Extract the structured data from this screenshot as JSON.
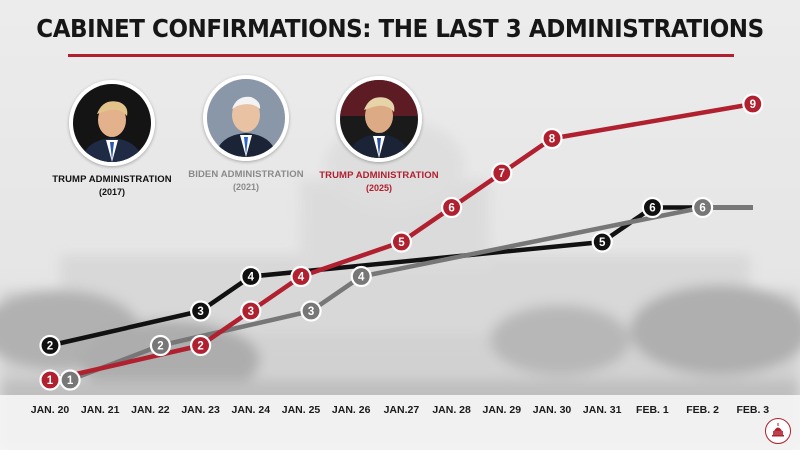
{
  "header": {
    "title": "CABINET CONFIRMATIONS: THE LAST 3 ADMINISTRATIONS"
  },
  "colors": {
    "trump2017": "#111111",
    "biden2021": "#7a7a7a",
    "trump2025": "#b0202f",
    "accent": "#b0202f"
  },
  "administrations": [
    {
      "name": "TRUMP ADMINISTRATION",
      "year": "(2017)",
      "color": "#111111"
    },
    {
      "name": "BIDEN ADMINISTRATION",
      "year": "(2021)",
      "color": "#8a8a8a"
    },
    {
      "name": "TRUMP ADMINISTRATION",
      "year": "(2025)",
      "color": "#b0202f"
    }
  ],
  "chart_data": {
    "type": "line",
    "title": "CABINET CONFIRMATIONS: THE LAST 3 ADMINISTRATIONS",
    "categories": [
      "JAN. 20",
      "JAN. 21",
      "JAN. 22",
      "JAN. 23",
      "JAN. 24",
      "JAN. 25",
      "JAN. 26",
      "JAN.27",
      "JAN. 28",
      "JAN. 29",
      "JAN. 30",
      "JAN. 31",
      "FEB. 1",
      "FEB. 2",
      "FEB. 3"
    ],
    "ylim": [
      1,
      9
    ],
    "series": [
      {
        "name": "TRUMP ADMINISTRATION (2017)",
        "color": "#111111",
        "markers": [
          [
            0,
            2
          ],
          [
            3,
            3
          ],
          [
            4,
            4
          ],
          [
            11,
            5
          ],
          [
            12,
            6
          ]
        ],
        "end": [
          14,
          6
        ]
      },
      {
        "name": "BIDEN ADMINISTRATION (2021)",
        "color": "#777777",
        "markers": [
          [
            0.4,
            1
          ],
          [
            2.2,
            2
          ],
          [
            5.2,
            3
          ],
          [
            6.2,
            4
          ],
          [
            13,
            6
          ]
        ],
        "end": [
          14,
          6
        ]
      },
      {
        "name": "TRUMP ADMINISTRATION (2025)",
        "color": "#b0202f",
        "markers": [
          [
            0,
            1
          ],
          [
            3,
            2
          ],
          [
            4,
            3
          ],
          [
            5,
            4
          ],
          [
            7,
            5
          ],
          [
            8,
            6
          ],
          [
            9,
            7
          ],
          [
            10,
            8
          ],
          [
            14,
            9
          ]
        ]
      }
    ]
  },
  "logo": {
    "name": "SHSC seal"
  }
}
